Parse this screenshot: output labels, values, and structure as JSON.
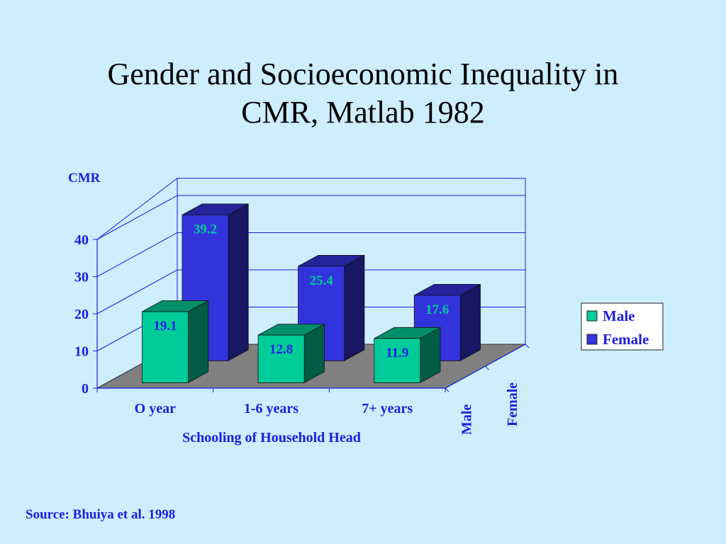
{
  "slide": {
    "title_line1": "Gender and Socioeconomic Inequality in",
    "title_line2": "CMR, Matlab 1982",
    "source": "Source: Bhuiya et al. 1998"
  },
  "chart_data": {
    "type": "bar",
    "title": "",
    "ylabel": "CMR",
    "xlabel": "Schooling of Household Head",
    "categories": [
      "O year",
      "1-6 years",
      "7+ years"
    ],
    "series": [
      {
        "name": "Male",
        "values": [
          19.1,
          12.8,
          11.9
        ],
        "color": "#00cc99"
      },
      {
        "name": "Female",
        "values": [
          39.2,
          25.4,
          17.6
        ],
        "color": "#3333dd"
      }
    ],
    "depth_axis_labels": [
      "Male",
      "Female"
    ],
    "ylim": [
      0,
      40
    ],
    "yticks": [
      0,
      10,
      20,
      30,
      40
    ],
    "grid": true,
    "three_d": true,
    "legend_position": "right",
    "label_colors": {
      "Male": "#1e1ee0",
      "Female": "#00cc99"
    },
    "text_color": "#1e1ee0",
    "floor_color": "#808080"
  }
}
